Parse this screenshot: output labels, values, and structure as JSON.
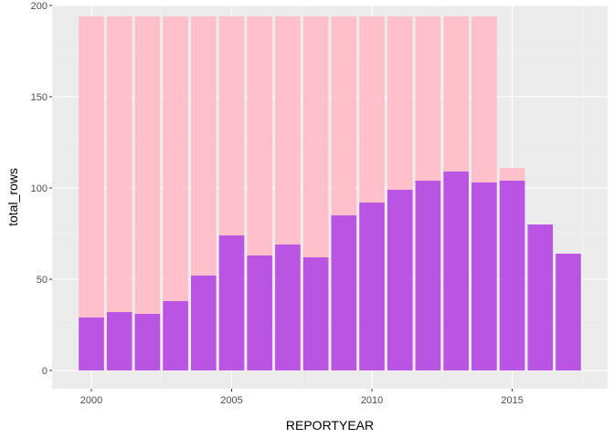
{
  "chart_data": {
    "type": "bar",
    "xlabel": "REPORTYEAR",
    "ylabel": "total_rows",
    "ylim": [
      -10,
      200
    ],
    "xlim": [
      1998.6,
      2018.4
    ],
    "x_ticks": [
      2000,
      2005,
      2010,
      2015
    ],
    "y_ticks": [
      0,
      50,
      100,
      150,
      200
    ],
    "grid": true,
    "legend": "none",
    "x": [
      2000,
      2001,
      2002,
      2003,
      2004,
      2005,
      2006,
      2007,
      2008,
      2009,
      2010,
      2011,
      2012,
      2013,
      2014,
      2015,
      2016,
      2017
    ],
    "series": [
      {
        "color": "#FFC0CB",
        "values": [
          194,
          194,
          194,
          194,
          194,
          194,
          194,
          194,
          194,
          194,
          194,
          194,
          194,
          194,
          194,
          111,
          null,
          null
        ]
      },
      {
        "color": "#BA55E3",
        "values": [
          29,
          32,
          31,
          38,
          52,
          74,
          63,
          69,
          62,
          85,
          92,
          99,
          104,
          109,
          103,
          104,
          80,
          64
        ]
      }
    ],
    "colors": {
      "panel_background": "#EBEBEB",
      "grid_major": "#FFFFFF",
      "grid_minor": "#F5F5F5"
    }
  }
}
